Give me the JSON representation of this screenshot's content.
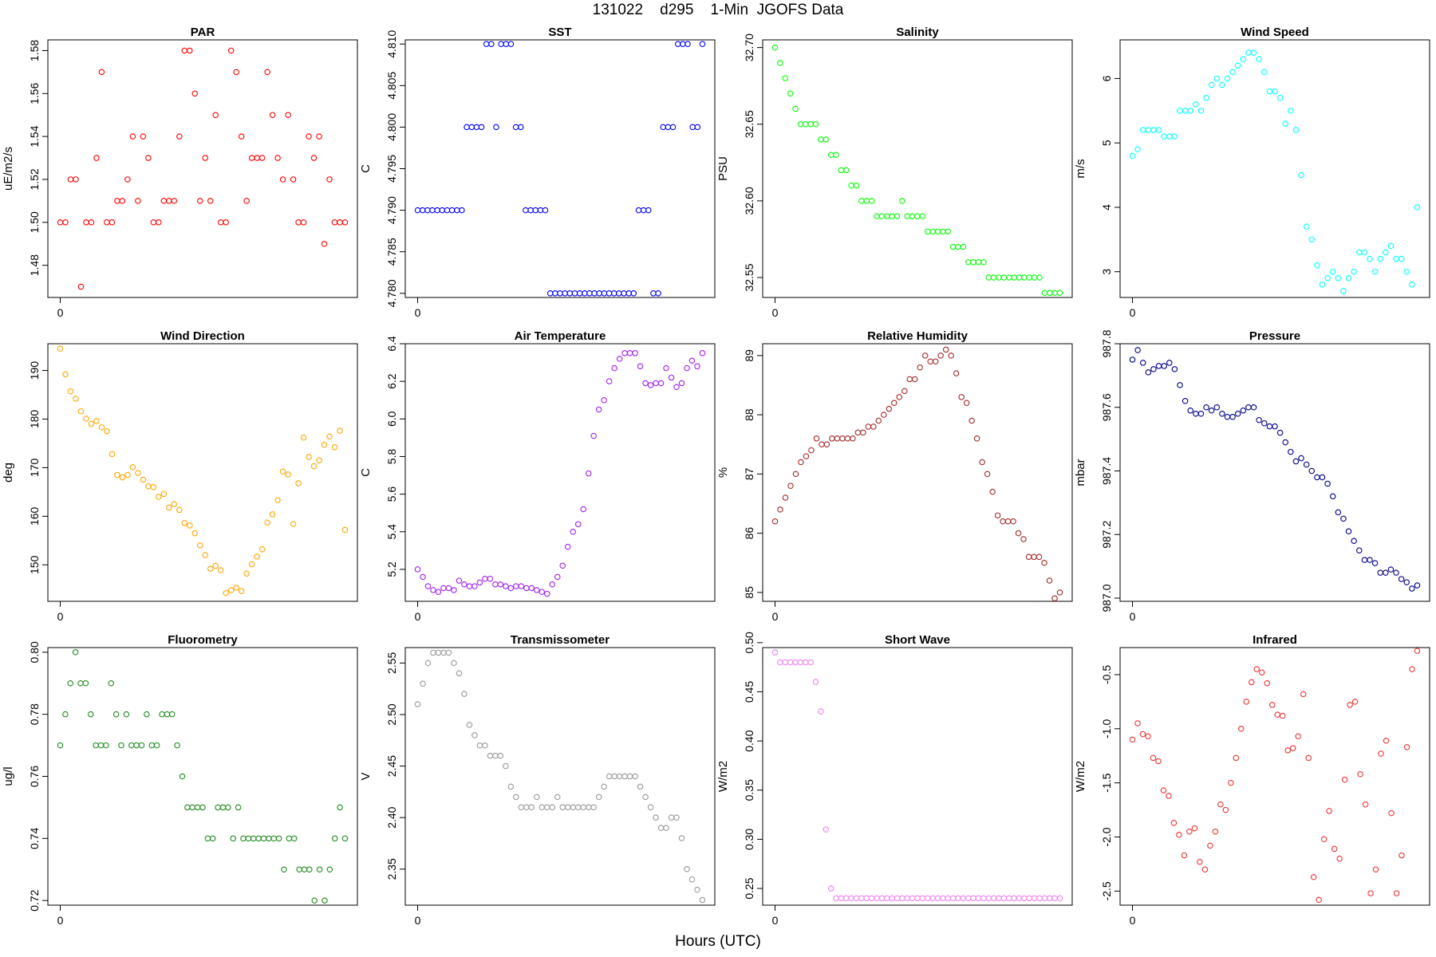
{
  "figure": {
    "title": "131022    d295    1-Min  JGOFS Data",
    "xlabel": "Hours (UTC)"
  },
  "chart_data": [
    {
      "type": "scatter",
      "title": "PAR",
      "ylabel": "uE/m2/s",
      "color": "#ff0000",
      "x_ticks": [
        0
      ],
      "ylim": [
        1.465,
        1.585
      ],
      "y_ticks": [
        "1.48",
        "1.50",
        "1.52",
        "1.54",
        "1.56",
        "1.58"
      ],
      "values": [
        1.5,
        1.5,
        1.52,
        1.52,
        1.47,
        1.5,
        1.5,
        1.53,
        1.57,
        1.5,
        1.5,
        1.51,
        1.51,
        1.52,
        1.54,
        1.51,
        1.54,
        1.53,
        1.5,
        1.5,
        1.51,
        1.51,
        1.51,
        1.54,
        1.58,
        1.58,
        1.56,
        1.51,
        1.53,
        1.51,
        1.55,
        1.5,
        1.5,
        1.58,
        1.57,
        1.54,
        1.51,
        1.53,
        1.53,
        1.53,
        1.57,
        1.55,
        1.53,
        1.52,
        1.55,
        1.52,
        1.5,
        1.5,
        1.54,
        1.53,
        1.54,
        1.49,
        1.52,
        1.5,
        1.5,
        1.5
      ]
    },
    {
      "type": "scatter",
      "title": "SST",
      "ylabel": "C",
      "color": "#0000ff",
      "x_ticks": [
        0
      ],
      "ylim": [
        4.7795,
        4.8105
      ],
      "y_ticks": [
        "4.780",
        "4.785",
        "4.790",
        "4.795",
        "4.800",
        "4.805",
        "4.810"
      ],
      "values": [
        4.79,
        4.79,
        4.79,
        4.79,
        4.79,
        4.79,
        4.79,
        4.79,
        4.79,
        4.79,
        4.8,
        4.8,
        4.8,
        4.8,
        4.81,
        4.81,
        4.8,
        4.81,
        4.81,
        4.81,
        4.8,
        4.8,
        4.79,
        4.79,
        4.79,
        4.79,
        4.79,
        4.78,
        4.78,
        4.78,
        4.78,
        4.78,
        4.78,
        4.78,
        4.78,
        4.78,
        4.78,
        4.78,
        4.78,
        4.78,
        4.78,
        4.78,
        4.78,
        4.78,
        4.78,
        4.79,
        4.79,
        4.79,
        4.78,
        4.78,
        4.8,
        4.8,
        4.8,
        4.81,
        4.81,
        4.81,
        4.8,
        4.8,
        4.81
      ]
    },
    {
      "type": "scatter",
      "title": "Salinity",
      "ylabel": "PSU",
      "color": "#00ff00",
      "x_ticks": [
        0
      ],
      "ylim": [
        32.537,
        32.705
      ],
      "y_ticks": [
        "32.55",
        "32.60",
        "32.65",
        "32.70"
      ],
      "values": [
        32.7,
        32.69,
        32.68,
        32.67,
        32.66,
        32.65,
        32.65,
        32.65,
        32.65,
        32.64,
        32.64,
        32.63,
        32.63,
        32.62,
        32.62,
        32.61,
        32.61,
        32.6,
        32.6,
        32.6,
        32.59,
        32.59,
        32.59,
        32.59,
        32.59,
        32.6,
        32.59,
        32.59,
        32.59,
        32.59,
        32.58,
        32.58,
        32.58,
        32.58,
        32.58,
        32.57,
        32.57,
        32.57,
        32.56,
        32.56,
        32.56,
        32.56,
        32.55,
        32.55,
        32.55,
        32.55,
        32.55,
        32.55,
        32.55,
        32.55,
        32.55,
        32.55,
        32.55,
        32.54,
        32.54,
        32.54,
        32.54
      ]
    },
    {
      "type": "scatter",
      "title": "Wind Speed",
      "ylabel": "m/s",
      "color": "#00ffff",
      "x_ticks": [
        0
      ],
      "ylim": [
        2.6,
        6.6
      ],
      "y_ticks": [
        "3",
        "4",
        "5",
        "6"
      ],
      "values": [
        4.8,
        4.9,
        5.2,
        5.2,
        5.2,
        5.2,
        5.1,
        5.1,
        5.1,
        5.5,
        5.5,
        5.5,
        5.6,
        5.5,
        5.7,
        5.9,
        6.0,
        5.9,
        6.0,
        6.1,
        6.2,
        6.3,
        6.4,
        6.4,
        6.3,
        6.1,
        5.8,
        5.8,
        5.7,
        5.3,
        5.5,
        5.2,
        4.5,
        3.7,
        3.5,
        3.1,
        2.8,
        2.9,
        3.0,
        2.9,
        2.7,
        2.9,
        3.0,
        3.3,
        3.3,
        3.2,
        3.0,
        3.2,
        3.3,
        3.4,
        3.2,
        3.2,
        3.0,
        2.8,
        4.0
      ]
    },
    {
      "type": "scatter",
      "title": "Wind Direction",
      "ylabel": "deg",
      "color": "#ffa500",
      "x_ticks": [
        0
      ],
      "ylim": [
        142.5,
        195.5
      ],
      "y_ticks": [
        "150",
        "160",
        "170",
        "180",
        "190"
      ],
      "values": [
        194.5,
        189.2,
        185.7,
        184.2,
        181.6,
        180.1,
        179.0,
        179.6,
        178.3,
        177.5,
        172.8,
        168.5,
        168.0,
        168.5,
        170.1,
        168.9,
        167.5,
        166.2,
        166.0,
        164.0,
        164.6,
        161.8,
        162.5,
        161.3,
        158.6,
        158.1,
        156.5,
        154.0,
        152.0,
        149.2,
        149.8,
        148.9,
        144.2,
        144.8,
        145.3,
        144.6,
        148.2,
        150.1,
        151.7,
        153.2,
        158.7,
        160.4,
        163.3,
        169.2,
        168.6,
        158.4,
        166.8,
        176.2,
        172.2,
        170.3,
        171.5,
        174.7,
        176.4,
        174.2,
        177.6,
        157.2
      ]
    },
    {
      "type": "scatter",
      "title": "Air Temperature",
      "ylabel": "C",
      "color": "#a020f0",
      "x_ticks": [
        0
      ],
      "ylim": [
        5.03,
        6.4
      ],
      "y_ticks": [
        "5.2",
        "5.4",
        "5.6",
        "5.8",
        "6.0",
        "6.2",
        "6.4"
      ],
      "values": [
        5.2,
        5.16,
        5.11,
        5.09,
        5.08,
        5.1,
        5.1,
        5.09,
        5.14,
        5.12,
        5.11,
        5.11,
        5.13,
        5.15,
        5.15,
        5.12,
        5.12,
        5.11,
        5.1,
        5.11,
        5.11,
        5.1,
        5.1,
        5.09,
        5.08,
        5.07,
        5.12,
        5.16,
        5.22,
        5.32,
        5.4,
        5.44,
        5.52,
        5.71,
        5.91,
        6.05,
        6.1,
        6.2,
        6.27,
        6.32,
        6.35,
        6.35,
        6.35,
        6.28,
        6.19,
        6.18,
        6.19,
        6.19,
        6.27,
        6.22,
        6.17,
        6.19,
        6.27,
        6.31,
        6.28,
        6.35
      ]
    },
    {
      "type": "scatter",
      "title": "Relative Humidity",
      "ylabel": "%",
      "color": "#a52a2a",
      "x_ticks": [
        0
      ],
      "ylim": [
        84.85,
        89.2
      ],
      "y_ticks": [
        "85",
        "86",
        "87",
        "88",
        "89"
      ],
      "values": [
        86.2,
        86.4,
        86.6,
        86.8,
        87.0,
        87.2,
        87.3,
        87.4,
        87.6,
        87.5,
        87.5,
        87.6,
        87.6,
        87.6,
        87.6,
        87.6,
        87.7,
        87.7,
        87.8,
        87.8,
        87.9,
        88.0,
        88.1,
        88.2,
        88.3,
        88.4,
        88.6,
        88.6,
        88.8,
        89.0,
        88.9,
        88.9,
        89.0,
        89.1,
        89.0,
        88.7,
        88.3,
        88.2,
        87.9,
        87.6,
        87.2,
        87.0,
        86.7,
        86.3,
        86.2,
        86.2,
        86.2,
        86.0,
        85.9,
        85.6,
        85.6,
        85.6,
        85.5,
        85.2,
        84.9,
        85.0
      ]
    },
    {
      "type": "scatter",
      "title": "Pressure",
      "ylabel": "mbar",
      "color": "#00008b",
      "x_ticks": [
        0
      ],
      "ylim": [
        986.99,
        987.8
      ],
      "y_ticks": [
        "987.0",
        "987.2",
        "987.4",
        "987.6",
        "987.8"
      ],
      "values": [
        987.75,
        987.78,
        987.74,
        987.71,
        987.72,
        987.73,
        987.73,
        987.74,
        987.72,
        987.67,
        987.62,
        987.59,
        987.58,
        987.58,
        987.6,
        987.59,
        987.6,
        987.58,
        987.57,
        987.57,
        987.58,
        987.59,
        987.6,
        987.6,
        987.56,
        987.55,
        987.54,
        987.54,
        987.52,
        987.49,
        987.46,
        987.43,
        987.44,
        987.42,
        987.4,
        987.38,
        987.38,
        987.36,
        987.32,
        987.27,
        987.25,
        987.21,
        987.18,
        987.15,
        987.12,
        987.12,
        987.11,
        987.08,
        987.08,
        987.09,
        987.08,
        987.06,
        987.05,
        987.03,
        987.04
      ]
    },
    {
      "type": "scatter",
      "title": "Fluorometry",
      "ylabel": "ug/l",
      "color": "#228b22",
      "x_ticks": [
        0
      ],
      "ylim": [
        0.7185,
        0.8015
      ],
      "y_ticks": [
        "0.72",
        "0.74",
        "0.76",
        "0.78",
        "0.80"
      ],
      "values": [
        0.77,
        0.78,
        0.79,
        0.8,
        0.79,
        0.79,
        0.78,
        0.77,
        0.77,
        0.77,
        0.79,
        0.78,
        0.77,
        0.78,
        0.77,
        0.77,
        0.77,
        0.78,
        0.77,
        0.77,
        0.78,
        0.78,
        0.78,
        0.77,
        0.76,
        0.75,
        0.75,
        0.75,
        0.75,
        0.74,
        0.74,
        0.75,
        0.75,
        0.75,
        0.74,
        0.75,
        0.74,
        0.74,
        0.74,
        0.74,
        0.74,
        0.74,
        0.74,
        0.74,
        0.73,
        0.74,
        0.74,
        0.73,
        0.73,
        0.73,
        0.72,
        0.73,
        0.72,
        0.73,
        0.74,
        0.75,
        0.74
      ]
    },
    {
      "type": "scatter",
      "title": "Transmissometer",
      "ylabel": "V",
      "color": "#999999",
      "x_ticks": [
        0
      ],
      "ylim": [
        2.315,
        2.565
      ],
      "y_ticks": [
        "2.35",
        "2.40",
        "2.45",
        "2.50",
        "2.55"
      ],
      "values": [
        2.51,
        2.53,
        2.55,
        2.56,
        2.56,
        2.56,
        2.56,
        2.55,
        2.54,
        2.52,
        2.49,
        2.48,
        2.47,
        2.47,
        2.46,
        2.46,
        2.46,
        2.45,
        2.43,
        2.42,
        2.41,
        2.41,
        2.41,
        2.42,
        2.41,
        2.41,
        2.41,
        2.42,
        2.41,
        2.41,
        2.41,
        2.41,
        2.41,
        2.41,
        2.41,
        2.42,
        2.43,
        2.44,
        2.44,
        2.44,
        2.44,
        2.44,
        2.44,
        2.43,
        2.42,
        2.41,
        2.4,
        2.39,
        2.39,
        2.4,
        2.4,
        2.38,
        2.35,
        2.34,
        2.33,
        2.32
      ]
    },
    {
      "type": "scatter",
      "title": "Short Wave",
      "ylabel": "W/m2",
      "color": "#ee82ee",
      "x_ticks": [
        0
      ],
      "ylim": [
        0.233,
        0.495
      ],
      "y_ticks": [
        "0.25",
        "0.30",
        "0.35",
        "0.40",
        "0.45",
        "0.50"
      ],
      "values": [
        0.49,
        0.48,
        0.48,
        0.48,
        0.48,
        0.48,
        0.48,
        0.48,
        0.46,
        0.43,
        0.31,
        0.25,
        0.24,
        0.24,
        0.24,
        0.24,
        0.24,
        0.24,
        0.24,
        0.24,
        0.24,
        0.24,
        0.24,
        0.24,
        0.24,
        0.24,
        0.24,
        0.24,
        0.24,
        0.24,
        0.24,
        0.24,
        0.24,
        0.24,
        0.24,
        0.24,
        0.24,
        0.24,
        0.24,
        0.24,
        0.24,
        0.24,
        0.24,
        0.24,
        0.24,
        0.24,
        0.24,
        0.24,
        0.24,
        0.24,
        0.24,
        0.24,
        0.24,
        0.24,
        0.24,
        0.24,
        0.24
      ]
    },
    {
      "type": "scatter",
      "title": "Infrared",
      "ylabel": "W/m2",
      "color": "#ee3333",
      "x_ticks": [
        0
      ],
      "ylim": [
        -2.63,
        -0.25
      ],
      "y_ticks": [
        "-2.5",
        "-2.0",
        "-1.5",
        "-1.0",
        "-0.5"
      ],
      "values": [
        -1.1,
        -0.95,
        -1.05,
        -1.07,
        -1.27,
        -1.3,
        -1.57,
        -1.62,
        -1.87,
        -1.98,
        -2.17,
        -1.95,
        -1.92,
        -2.23,
        -2.3,
        -2.08,
        -1.95,
        -1.7,
        -1.75,
        -1.5,
        -1.27,
        -1.0,
        -0.75,
        -0.57,
        -0.45,
        -0.48,
        -0.58,
        -0.78,
        -0.87,
        -0.88,
        -1.2,
        -1.18,
        -1.07,
        -0.68,
        -1.27,
        -2.37,
        -2.58,
        -2.02,
        -1.76,
        -2.11,
        -2.2,
        -1.47,
        -0.78,
        -0.75,
        -1.42,
        -1.7,
        -2.52,
        -2.3,
        -1.23,
        -1.11,
        -1.78,
        -2.52,
        -2.17,
        -1.17,
        -0.45,
        -0.28
      ]
    }
  ]
}
